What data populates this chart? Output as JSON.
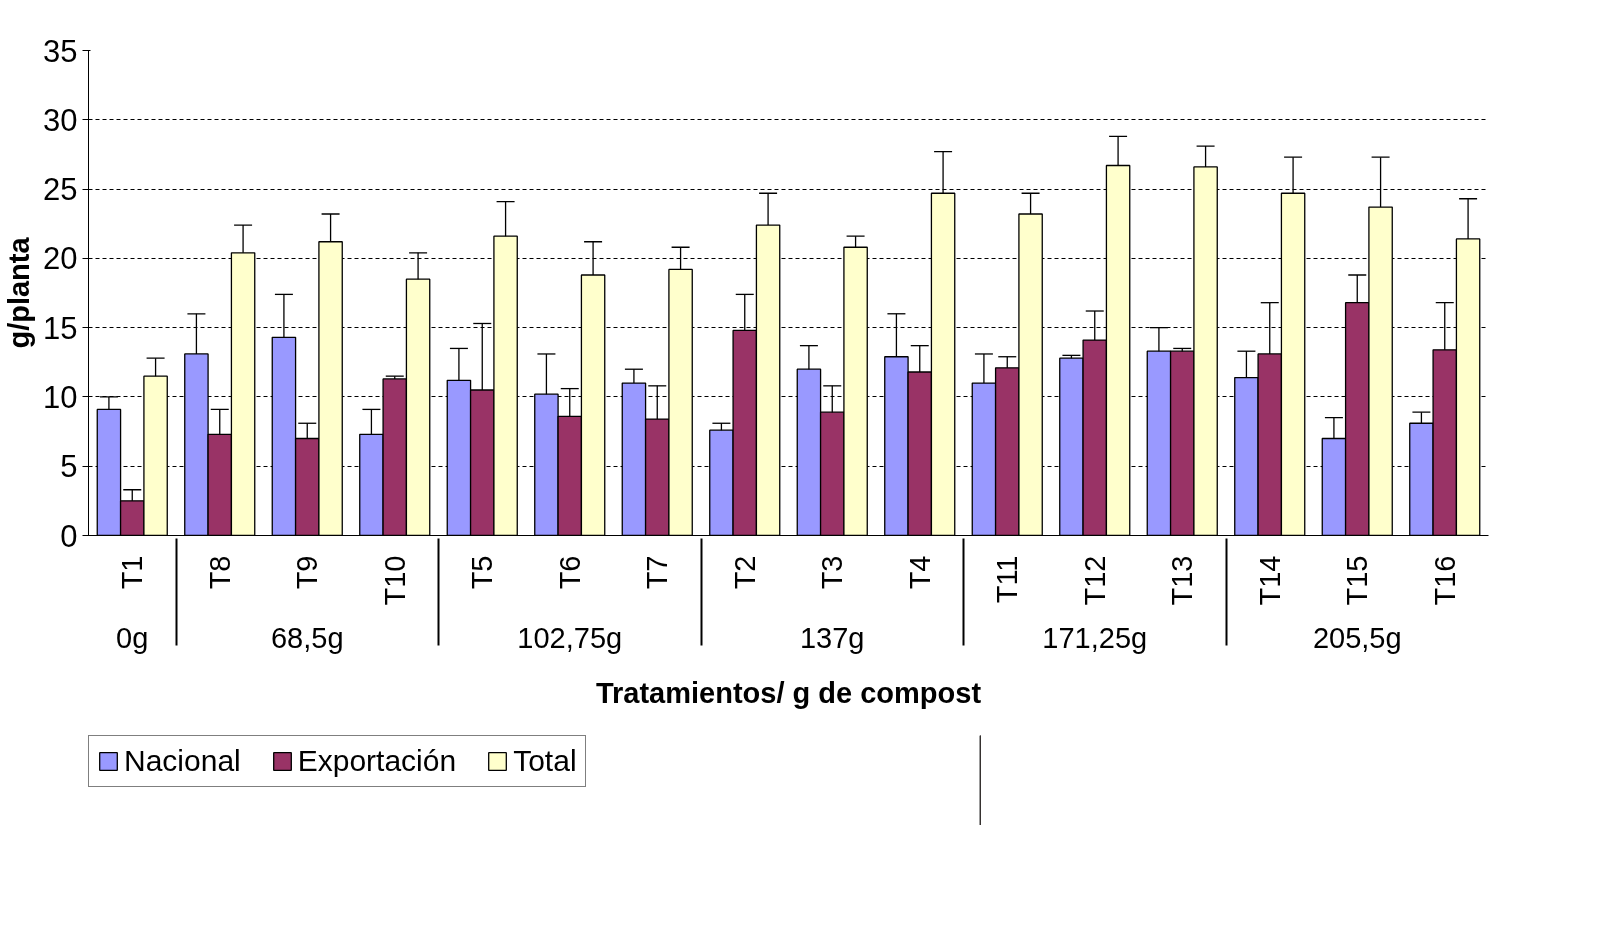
{
  "chart_data": {
    "type": "bar",
    "xlabel": "Tratamientos/ g de compost",
    "ylabel": "g/planta",
    "categories": [
      "T1",
      "T8",
      "T9",
      "T10",
      "T5",
      "T6",
      "T7",
      "T2",
      "T3",
      "T4",
      "T11",
      "T12",
      "T13",
      "T14",
      "T15",
      "T16"
    ],
    "series": [
      {
        "name": "Nacional",
        "color": "#9999ff",
        "values": [
          9.1,
          13.1,
          14.3,
          7.3,
          11.2,
          10.2,
          11.0,
          7.6,
          12.0,
          12.9,
          11.0,
          12.8,
          13.3,
          11.4,
          7.0,
          8.1
        ],
        "errors": [
          0.9,
          2.9,
          3.1,
          1.8,
          2.3,
          2.9,
          1.0,
          0.5,
          1.7,
          3.1,
          2.1,
          0.2,
          1.7,
          1.9,
          1.5,
          0.8
        ]
      },
      {
        "name": "Exportación",
        "color": "#993366",
        "values": [
          2.5,
          7.3,
          7.0,
          11.3,
          10.5,
          8.6,
          8.4,
          14.8,
          8.9,
          11.8,
          12.1,
          14.1,
          13.3,
          13.1,
          16.8,
          13.4
        ],
        "errors": [
          0.8,
          1.8,
          1.1,
          0.2,
          4.8,
          2.0,
          2.4,
          2.6,
          1.9,
          1.9,
          0.8,
          2.1,
          0.2,
          3.7,
          2.0,
          3.4
        ]
      },
      {
        "name": "Total",
        "color": "#ffffcc",
        "values": [
          11.5,
          20.4,
          21.2,
          18.5,
          21.6,
          18.8,
          19.2,
          22.4,
          20.8,
          24.7,
          23.2,
          26.7,
          26.6,
          24.7,
          23.7,
          21.4
        ],
        "errors": [
          1.3,
          2.0,
          2.0,
          1.9,
          2.5,
          2.4,
          1.6,
          2.3,
          0.8,
          3.0,
          1.5,
          2.1,
          1.5,
          2.6,
          3.6,
          2.9
        ]
      }
    ],
    "annotations": [
      "0g",
      "68,5g",
      "102,75g",
      "137g",
      "171,25g",
      "205,5g"
    ],
    "ylim": [
      0,
      35
    ],
    "yticks": [
      0,
      5,
      10,
      15,
      20,
      25,
      30,
      35
    ],
    "grid": "y",
    "legend": "bottom left"
  }
}
